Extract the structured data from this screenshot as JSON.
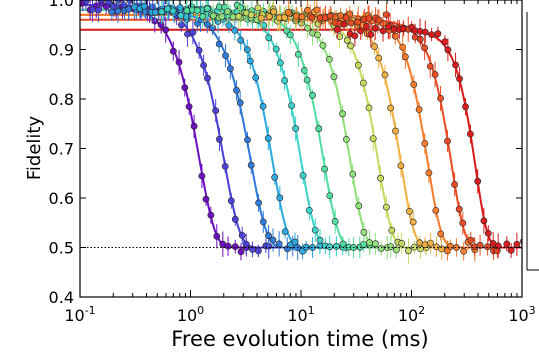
{
  "chart_data": {
    "type": "scatter",
    "title": "",
    "xlabel": "Free evolution time (ms)",
    "ylabel": "Fidelity",
    "x_scale": "log",
    "xlim": [
      0.1,
      1000
    ],
    "ylim": [
      0.4,
      1.0
    ],
    "x_ticks": [
      {
        "value": 0.1,
        "base": "10",
        "exp": "-1"
      },
      {
        "value": 1,
        "base": "10",
        "exp": "0"
      },
      {
        "value": 10,
        "base": "10",
        "exp": "1"
      },
      {
        "value": 100,
        "base": "10",
        "exp": "2"
      },
      {
        "value": 1000,
        "base": "10",
        "exp": "3"
      }
    ],
    "y_ticks": [
      "0.4",
      "0.5",
      "0.6",
      "0.7",
      "0.8",
      "0.9",
      "1.0"
    ],
    "reference_lines": [
      1.0,
      0.5
    ],
    "grid": false,
    "legend": "none",
    "series": [
      {
        "color": "#6a0dbf",
        "amplitude": 0.49,
        "T": 1.2,
        "n": 3.0
      },
      {
        "color": "#4a3fd8",
        "amplitude": 0.49,
        "T": 2.0,
        "n": 3.0
      },
      {
        "color": "#2f78d8",
        "amplitude": 0.48,
        "T": 3.5,
        "n": 3.0
      },
      {
        "color": "#2aa8e0",
        "amplitude": 0.48,
        "T": 5.5,
        "n": 3.2
      },
      {
        "color": "#39d1c8",
        "amplitude": 0.48,
        "T": 10,
        "n": 3.2
      },
      {
        "color": "#4fdca0",
        "amplitude": 0.48,
        "T": 16,
        "n": 3.2
      },
      {
        "color": "#8fe07a",
        "amplitude": 0.47,
        "T": 28,
        "n": 3.4
      },
      {
        "color": "#c6d960",
        "amplitude": 0.47,
        "T": 50,
        "n": 3.4
      },
      {
        "color": "#f0b040",
        "amplitude": 0.47,
        "T": 80,
        "n": 3.5
      },
      {
        "color": "#f57a2a",
        "amplitude": 0.47,
        "T": 140,
        "n": 3.5
      },
      {
        "color": "#e84a22",
        "amplitude": 0.46,
        "T": 230,
        "n": 3.6
      },
      {
        "color": "#d9181a",
        "amplitude": 0.44,
        "T": 380,
        "n": 4.0
      }
    ]
  }
}
